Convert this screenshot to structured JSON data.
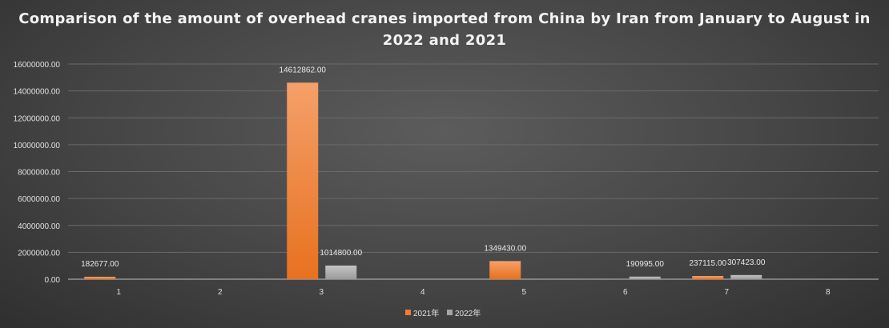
{
  "chart_data": {
    "type": "bar",
    "title": "Comparison of the amount of overhead cranes imported from China by Iran from January to August in 2022 and 2021",
    "categories": [
      "1",
      "2",
      "3",
      "4",
      "5",
      "6",
      "7",
      "8"
    ],
    "series": [
      {
        "name": "2021年",
        "color": "#ed7d31",
        "values": [
          182677,
          0,
          14612862,
          0,
          1349430,
          0,
          237115,
          0
        ],
        "labels": [
          "182677.00",
          "",
          "14612862.00",
          "",
          "1349430.00",
          "",
          "237115.00",
          ""
        ]
      },
      {
        "name": "2022年",
        "color": "#a5a5a5",
        "values": [
          0,
          0,
          1014800,
          0,
          0,
          190995,
          307423,
          0
        ],
        "labels": [
          "",
          "",
          "1014800.00",
          "",
          "",
          "190995.00",
          "307423.00",
          ""
        ]
      }
    ],
    "ylim": [
      0,
      16000000
    ],
    "yticks": [
      "0.00",
      "2000000.00",
      "4000000.00",
      "6000000.00",
      "8000000.00",
      "10000000.00",
      "12000000.00",
      "14000000.00",
      "16000000.00"
    ],
    "grid": true,
    "legend": "bottom",
    "xlabel": "",
    "ylabel": ""
  }
}
